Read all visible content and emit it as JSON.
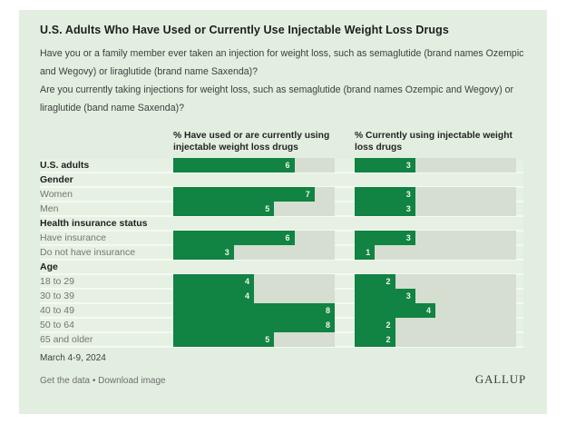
{
  "header": {
    "title": "U.S. Adults Who Have Used or Currently Use Injectable Weight Loss Drugs",
    "questions": [
      "Have you or a family member ever taken an injection for weight loss, such as semaglutide (brand names Ozempic and Wegovy) or liraglutide (brand name Saxenda)?",
      "Are you currently taking injections for weight loss, such as semaglutide (brand names Ozempic and Wegovy) or liraglutide (band name Saxenda)?"
    ]
  },
  "chart_data": {
    "type": "bar",
    "orientation": "horizontal",
    "unit": "%",
    "axis_max": 8,
    "grid": false,
    "legend_position": "none",
    "columns": [
      "% Have used or are currently using injectable weight loss drugs",
      "% Currently using injectable weight loss drugs"
    ],
    "rows": [
      {
        "label": "U.S. adults",
        "group_header": false,
        "bold": true,
        "values": [
          6,
          3
        ]
      },
      {
        "label": "Gender",
        "group_header": true
      },
      {
        "label": "Women",
        "group_header": false,
        "bold": false,
        "values": [
          7,
          3
        ]
      },
      {
        "label": "Men",
        "group_header": false,
        "bold": false,
        "values": [
          5,
          3
        ]
      },
      {
        "label": "Health insurance status",
        "group_header": true
      },
      {
        "label": "Have insurance",
        "group_header": false,
        "bold": false,
        "values": [
          6,
          3
        ]
      },
      {
        "label": "Do not have insurance",
        "group_header": false,
        "bold": false,
        "values": [
          3,
          1
        ]
      },
      {
        "label": "Age",
        "group_header": true
      },
      {
        "label": "18 to 29",
        "group_header": false,
        "bold": false,
        "values": [
          4,
          2
        ]
      },
      {
        "label": "30 to 39",
        "group_header": false,
        "bold": false,
        "values": [
          4,
          3
        ]
      },
      {
        "label": "40 to 49",
        "group_header": false,
        "bold": false,
        "values": [
          8,
          4
        ]
      },
      {
        "label": "50 to 64",
        "group_header": false,
        "bold": false,
        "values": [
          8,
          2
        ]
      },
      {
        "label": "65 and older",
        "group_header": false,
        "bold": false,
        "values": [
          5,
          2
        ]
      }
    ],
    "colors": {
      "bar": "#118342",
      "track": "#d5ded0",
      "card_background": "#e2efe0"
    }
  },
  "footer": {
    "date": "March 4-9, 2024",
    "link1": "Get the data",
    "separator": "•",
    "link2": "Download image",
    "brand": "GALLUP"
  }
}
